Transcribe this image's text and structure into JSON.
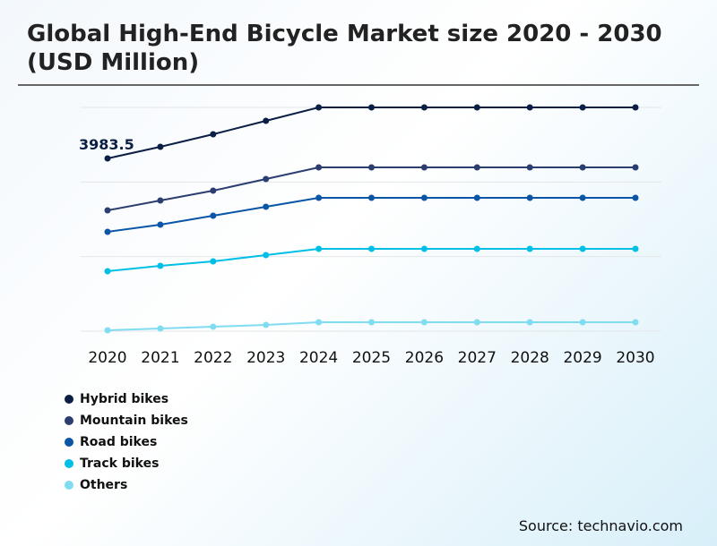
{
  "title": "Global High-End Bicycle Market size 2020 - 2030 (USD Million)",
  "source": "Source: technavio.com",
  "chart_data": {
    "type": "line",
    "title": "Global High-End Bicycle Market size 2020 - 2030 (USD Million)",
    "categories": [
      "2020",
      "2021",
      "2022",
      "2023",
      "2024",
      "2025",
      "2026",
      "2027",
      "2028",
      "2029",
      "2030"
    ],
    "ylim": [
      0,
      5160
    ],
    "grid": true,
    "legend": "bottom-left",
    "annotations": [
      {
        "series": "Hybrid bikes",
        "category": "2020",
        "text": "3983.5"
      }
    ],
    "series": [
      {
        "name": "Hybrid bikes",
        "color": "#0b1f45",
        "values": [
          3983.5,
          4252,
          4541,
          4851,
          5160,
          5160,
          5160,
          5160,
          5160,
          5160,
          5160
        ]
      },
      {
        "name": "Mountain bikes",
        "color": "#2c3e70",
        "values": [
          2786,
          3013,
          3240,
          3509,
          3777,
          3777,
          3777,
          3777,
          3777,
          3777,
          3777
        ]
      },
      {
        "name": "Road bikes",
        "color": "#0a55a5",
        "values": [
          2291,
          2456,
          2663,
          2869,
          3076,
          3076,
          3076,
          3076,
          3076,
          3076,
          3076
        ]
      },
      {
        "name": "Track bikes",
        "color": "#00bfe6",
        "values": [
          1383,
          1507,
          1610,
          1755,
          1899,
          1899,
          1899,
          1899,
          1899,
          1899,
          1899
        ]
      },
      {
        "name": "Others",
        "color": "#80dcf0",
        "values": [
          21,
          62,
          103,
          144,
          206,
          206,
          206,
          206,
          206,
          206,
          206
        ]
      }
    ]
  }
}
